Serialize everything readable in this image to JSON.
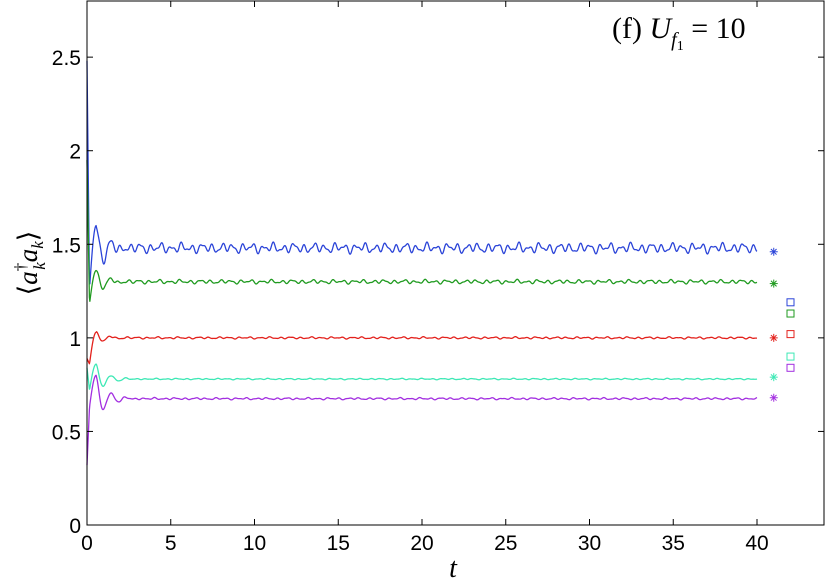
{
  "chart_data": {
    "type": "line",
    "title": "",
    "annotation": {
      "prefix": "(f) ",
      "symbol": "U",
      "subscript": "f",
      "subscript2": "1",
      "suffix": " = 10"
    },
    "xlabel": "t",
    "ylabel": {
      "open": "⟨",
      "a1": "a",
      "dagger": "†",
      "sub1": "k",
      "a2": "a",
      "sub2": "k",
      "close": "⟩"
    },
    "xlim": [
      0,
      44
    ],
    "ylim": [
      0,
      2.8
    ],
    "x_ticks": [
      "0",
      "5",
      "10",
      "15",
      "20",
      "25",
      "30",
      "35",
      "40"
    ],
    "y_ticks": [
      "0",
      "0.5",
      "1",
      "1.5",
      "2",
      "2.5"
    ],
    "x_tick_values": [
      0,
      5,
      10,
      15,
      20,
      25,
      30,
      35,
      40
    ],
    "y_tick_values": [
      0,
      0.5,
      1,
      1.5,
      2,
      2.5
    ],
    "grid": false,
    "legend": "none",
    "series": [
      {
        "color": "#2b44d8",
        "start": 2.48,
        "dip": 1.26,
        "peak": 1.6,
        "steady": 1.48,
        "amplitude": 0.03,
        "star": {
          "x": 41,
          "y": 1.46
        },
        "square": {
          "x": 42,
          "y": 1.19
        }
      },
      {
        "color": "#1f9a1f",
        "start": 1.95,
        "dip": 1.18,
        "peak": 1.36,
        "steady": 1.3,
        "amplitude": 0.012,
        "star": {
          "x": 41,
          "y": 1.29
        },
        "square": {
          "x": 42,
          "y": 1.13
        }
      },
      {
        "color": "#e3211c",
        "start": 0.89,
        "dip": 0.86,
        "peak": 1.03,
        "steady": 1.0,
        "amplitude": 0.006,
        "star": {
          "x": 41,
          "y": 1.0
        },
        "square": {
          "x": 42,
          "y": 1.02
        }
      },
      {
        "color": "#3de8b5",
        "start": 0.84,
        "dip": 0.72,
        "peak": 0.86,
        "steady": 0.78,
        "amplitude": 0.004,
        "star": {
          "x": 41,
          "y": 0.79
        },
        "square": {
          "x": 42,
          "y": 0.9
        }
      },
      {
        "color": "#a22ee0",
        "start": 0.32,
        "dip": 0.63,
        "peak": 0.8,
        "steady": 0.675,
        "amplitude": 0.006,
        "star": {
          "x": 41,
          "y": 0.68
        },
        "square": {
          "x": 42,
          "y": 0.84
        }
      }
    ]
  }
}
